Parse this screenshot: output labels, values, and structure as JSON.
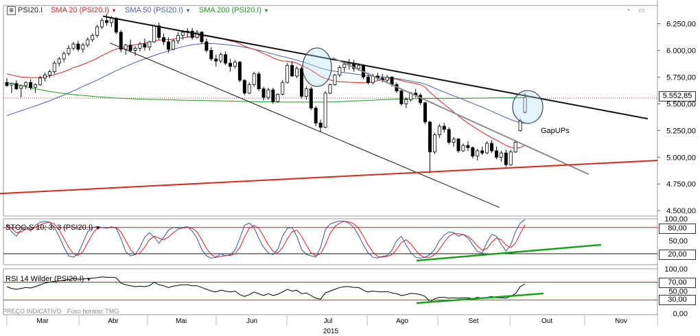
{
  "chart_data": {
    "type": "candlestick",
    "symbol": "PSI20.I",
    "legend": [
      {
        "label": "PSI20.I",
        "color": "#000000"
      },
      {
        "label": "SMA 20 (PSI20.I)",
        "color": "#d62020"
      },
      {
        "label": "SMA 50 (PSI20.I)",
        "color": "#4a5fa8"
      },
      {
        "label": "SMA 200 (PSI20.I)",
        "color": "#1a9a1a"
      }
    ],
    "price_axis": {
      "ticks": [
        "6.250,00",
        "6.000,00",
        "5.750,00",
        "5.500,00",
        "5.250,00",
        "5.000,00",
        "4.750,00",
        "4.500,00"
      ],
      "range": [
        4450,
        6420
      ]
    },
    "last_price": "5.552,85",
    "last_price_value": 5552.85,
    "x_axis": {
      "months": [
        "Mar",
        "Abr",
        "Mai",
        "Jun",
        "Jul",
        "Ago",
        "Set",
        "Out",
        "Nov"
      ],
      "year": "2015"
    },
    "annotations": {
      "gapups_label": "GapUPs"
    },
    "candles": [
      [
        5700,
        5740,
        5660,
        5670
      ],
      [
        5675,
        5700,
        5600,
        5690
      ],
      [
        5690,
        5720,
        5630,
        5640
      ],
      [
        5645,
        5680,
        5560,
        5670
      ],
      [
        5670,
        5710,
        5640,
        5700
      ],
      [
        5700,
        5730,
        5630,
        5650
      ],
      [
        5655,
        5690,
        5600,
        5680
      ],
      [
        5680,
        5760,
        5670,
        5740
      ],
      [
        5740,
        5790,
        5710,
        5770
      ],
      [
        5770,
        5820,
        5740,
        5800
      ],
      [
        5800,
        5900,
        5780,
        5880
      ],
      [
        5880,
        5940,
        5850,
        5920
      ],
      [
        5920,
        5990,
        5890,
        5970
      ],
      [
        5970,
        6050,
        5950,
        6020
      ],
      [
        6020,
        6080,
        6000,
        6060
      ],
      [
        6060,
        6090,
        5990,
        6010
      ],
      [
        6010,
        6070,
        5980,
        6050
      ],
      [
        6050,
        6120,
        6030,
        6100
      ],
      [
        6100,
        6160,
        6080,
        6140
      ],
      [
        6140,
        6240,
        6120,
        6220
      ],
      [
        6220,
        6300,
        6200,
        6280
      ],
      [
        6280,
        6340,
        6230,
        6260
      ],
      [
        6260,
        6320,
        6220,
        6300
      ],
      [
        6300,
        6310,
        6150,
        6170
      ],
      [
        6170,
        6190,
        5980,
        6010
      ],
      [
        6010,
        6060,
        5960,
        6050
      ],
      [
        6050,
        6100,
        5980,
        6000
      ],
      [
        6000,
        6040,
        5950,
        6020
      ],
      [
        6020,
        6080,
        5990,
        6060
      ],
      [
        6060,
        6110,
        6000,
        6030
      ],
      [
        6030,
        6090,
        6000,
        6080
      ],
      [
        6080,
        6240,
        6070,
        6230
      ],
      [
        6230,
        6260,
        6100,
        6120
      ],
      [
        6120,
        6160,
        6050,
        6080
      ],
      [
        6080,
        6120,
        5980,
        6010
      ],
      [
        6010,
        6110,
        6000,
        6090
      ],
      [
        6090,
        6170,
        6060,
        6140
      ],
      [
        6140,
        6190,
        6100,
        6170
      ],
      [
        6170,
        6210,
        6120,
        6180
      ],
      [
        6180,
        6210,
        6100,
        6120
      ],
      [
        6120,
        6190,
        6110,
        6170
      ],
      [
        6170,
        6180,
        6060,
        6080
      ],
      [
        6080,
        6110,
        5980,
        6000
      ],
      [
        6000,
        6030,
        5900,
        5920
      ],
      [
        5920,
        5960,
        5850,
        5900
      ],
      [
        5900,
        5980,
        5880,
        5960
      ],
      [
        5960,
        5990,
        5860,
        5880
      ],
      [
        5880,
        5920,
        5800,
        5850
      ],
      [
        5850,
        5910,
        5830,
        5890
      ],
      [
        5890,
        5900,
        5700,
        5720
      ],
      [
        5720,
        5730,
        5580,
        5600
      ],
      [
        5600,
        5700,
        5590,
        5680
      ],
      [
        5680,
        5800,
        5660,
        5780
      ],
      [
        5780,
        5800,
        5620,
        5640
      ],
      [
        5640,
        5660,
        5530,
        5560
      ],
      [
        5560,
        5650,
        5540,
        5630
      ],
      [
        5630,
        5650,
        5500,
        5520
      ],
      [
        5520,
        5600,
        5510,
        5590
      ],
      [
        5590,
        5720,
        5580,
        5700
      ],
      [
        5700,
        5880,
        5690,
        5860
      ],
      [
        5860,
        5900,
        5750,
        5760
      ],
      [
        5760,
        5850,
        5740,
        5830
      ],
      [
        5830,
        5850,
        5550,
        5570
      ],
      [
        5570,
        5660,
        5540,
        5640
      ],
      [
        5640,
        5660,
        5440,
        5460
      ],
      [
        5460,
        5480,
        5290,
        5320
      ],
      [
        5320,
        5350,
        5240,
        5280
      ],
      [
        5280,
        5620,
        5270,
        5600
      ],
      [
        5600,
        5690,
        5590,
        5680
      ],
      [
        5680,
        5780,
        5670,
        5770
      ],
      [
        5770,
        5860,
        5750,
        5840
      ],
      [
        5840,
        5900,
        5800,
        5870
      ],
      [
        5870,
        5920,
        5820,
        5880
      ],
      [
        5880,
        5910,
        5800,
        5830
      ],
      [
        5830,
        5880,
        5810,
        5860
      ],
      [
        5860,
        5870,
        5730,
        5750
      ],
      [
        5750,
        5790,
        5680,
        5700
      ],
      [
        5700,
        5780,
        5680,
        5760
      ],
      [
        5760,
        5790,
        5720,
        5740
      ],
      [
        5740,
        5780,
        5700,
        5720
      ],
      [
        5720,
        5770,
        5700,
        5750
      ],
      [
        5750,
        5760,
        5660,
        5680
      ],
      [
        5680,
        5700,
        5600,
        5620
      ],
      [
        5620,
        5640,
        5480,
        5500
      ],
      [
        5500,
        5560,
        5460,
        5540
      ],
      [
        5540,
        5610,
        5520,
        5600
      ],
      [
        5600,
        5640,
        5560,
        5580
      ],
      [
        5580,
        5600,
        5490,
        5510
      ],
      [
        5510,
        5520,
        5310,
        5330
      ],
      [
        5330,
        5340,
        4850,
        5050
      ],
      [
        5050,
        5230,
        5030,
        5210
      ],
      [
        5210,
        5310,
        5180,
        5290
      ],
      [
        5290,
        5320,
        5230,
        5260
      ],
      [
        5260,
        5280,
        5120,
        5140
      ],
      [
        5140,
        5190,
        5100,
        5170
      ],
      [
        5170,
        5180,
        5040,
        5060
      ],
      [
        5060,
        5130,
        5050,
        5110
      ],
      [
        5110,
        5150,
        5060,
        5090
      ],
      [
        5090,
        5100,
        4990,
        5010
      ],
      [
        5010,
        5080,
        4970,
        5060
      ],
      [
        5060,
        5100,
        5020,
        5040
      ],
      [
        5040,
        5150,
        5030,
        5130
      ],
      [
        5130,
        5160,
        5040,
        5060
      ],
      [
        5060,
        5100,
        4980,
        5000
      ],
      [
        5000,
        5060,
        4960,
        5040
      ],
      [
        5040,
        5070,
        4910,
        4930
      ],
      [
        4930,
        5070,
        4920,
        5050
      ],
      [
        5050,
        5160,
        5040,
        5140
      ],
      [
        5250,
        5360,
        5240,
        5340
      ],
      [
        5420,
        5600,
        5410,
        5560
      ]
    ],
    "sma20": [
      5780,
      5770,
      5760,
      5750,
      5750,
      5745,
      5745,
      5748,
      5752,
      5760,
      5772,
      5786,
      5800,
      5818,
      5838,
      5852,
      5868,
      5886,
      5904,
      5926,
      5950,
      5972,
      5994,
      6012,
      6024,
      6035,
      6044,
      6052,
      6060,
      6068,
      6075,
      6088,
      6096,
      6100,
      6102,
      6105,
      6110,
      6118,
      6124,
      6130,
      6136,
      6137,
      6134,
      6126,
      6116,
      6110,
      6100,
      6088,
      6080,
      6062,
      6040,
      6022,
      6010,
      5992,
      5970,
      5952,
      5930,
      5912,
      5900,
      5898,
      5890,
      5880,
      5860,
      5840,
      5815,
      5786,
      5756,
      5738,
      5724,
      5712,
      5706,
      5704,
      5702,
      5700,
      5698,
      5696,
      5696,
      5706,
      5716,
      5726,
      5734,
      5736,
      5730,
      5718,
      5706,
      5698,
      5690,
      5678,
      5656,
      5610,
      5570,
      5532,
      5496,
      5460,
      5424,
      5386,
      5350,
      5320,
      5290,
      5262,
      5234,
      5208,
      5182,
      5160,
      5136,
      5110,
      5092,
      5084,
      5090,
      5112
    ],
    "sma50": [
      5390,
      5405,
      5420,
      5435,
      5450,
      5465,
      5480,
      5496,
      5512,
      5528,
      5546,
      5564,
      5582,
      5602,
      5622,
      5642,
      5662,
      5682,
      5702,
      5722,
      5744,
      5766,
      5788,
      5810,
      5830,
      5850,
      5868,
      5886,
      5904,
      5920,
      5936,
      5952,
      5968,
      5982,
      5996,
      6010,
      6022,
      6034,
      6044,
      6052,
      6058,
      6062,
      6064,
      6064,
      6062,
      6058,
      6054,
      6050,
      6044,
      6038,
      6030,
      6020,
      6010,
      6000,
      5990,
      5978,
      5966,
      5954,
      5942,
      5932,
      5920,
      5908,
      5896,
      5882,
      5866,
      5850,
      5834,
      5822,
      5812,
      5804,
      5798,
      5792,
      5786,
      5780,
      5774,
      5768,
      5762,
      5758,
      5754,
      5750,
      5746,
      5742,
      5736,
      5728,
      5720,
      5712,
      5704,
      5696,
      5684,
      5666,
      5646,
      5628,
      5610,
      5592,
      5574,
      5558,
      5540,
      5522,
      5504,
      5486,
      5468,
      5450,
      5430,
      5410,
      5390,
      5370,
      5352,
      5336,
      5324,
      5318
    ],
    "sma200": [
      5700,
      5690,
      5680,
      5670,
      5660,
      5650,
      5640,
      5632,
      5624,
      5616,
      5608,
      5602,
      5596,
      5590,
      5586,
      5582,
      5578,
      5574,
      5570,
      5566,
      5563,
      5560,
      5557,
      5554,
      5552,
      5550,
      5548,
      5546,
      5544,
      5542,
      5541,
      5540,
      5539,
      5538,
      5537,
      5536,
      5535,
      5534,
      5533,
      5532,
      5532,
      5531,
      5530,
      5529,
      5528,
      5527,
      5526,
      5525,
      5524,
      5523,
      5522,
      5521,
      5520,
      5519,
      5518,
      5518,
      5517,
      5517,
      5516,
      5516,
      5516,
      5516,
      5516,
      5516,
      5516,
      5516,
      5516,
      5516,
      5517,
      5518,
      5520,
      5522,
      5524,
      5526,
      5528,
      5530,
      5532,
      5534,
      5536,
      5538,
      5540,
      5542,
      5544,
      5545,
      5546,
      5547,
      5548,
      5549,
      5550,
      5550,
      5550,
      5550,
      5550,
      5550,
      5551,
      5551,
      5552,
      5552,
      5553,
      5553,
      5554,
      5554,
      5555,
      5555,
      5556,
      5556,
      5557,
      5557,
      5558,
      5558
    ],
    "stochastic": {
      "label": "STOC-S 10; 3; 3 (PSI20.I)",
      "axis_ticks": [
        "100,00",
        "50,00"
      ],
      "levels": [
        "80,00",
        "20,00"
      ],
      "level_values": [
        80,
        20
      ],
      "range": [
        -5,
        100
      ],
      "k": [
        85,
        70,
        60,
        75,
        82,
        72,
        85,
        92,
        94,
        92,
        80,
        60,
        35,
        15,
        12,
        20,
        45,
        70,
        80,
        82,
        80,
        78,
        82,
        78,
        55,
        25,
        15,
        18,
        35,
        58,
        68,
        58,
        44,
        58,
        74,
        80,
        79,
        80,
        82,
        72,
        55,
        30,
        15,
        10,
        12,
        20,
        15,
        18,
        28,
        55,
        85,
        90,
        80,
        55,
        35,
        22,
        18,
        30,
        60,
        78,
        80,
        60,
        30,
        18,
        15,
        12,
        35,
        75,
        88,
        92,
        95,
        94,
        90,
        80,
        62,
        40,
        22,
        12,
        10,
        14,
        16,
        28,
        50,
        60,
        40,
        22,
        12,
        10,
        12,
        18,
        30,
        50,
        62,
        70,
        68,
        60,
        64,
        56,
        40,
        25,
        22,
        46,
        64,
        60,
        42,
        26,
        40,
        70,
        90,
        98
      ],
      "d": [
        88,
        78,
        68,
        70,
        76,
        76,
        80,
        86,
        90,
        92,
        88,
        75,
        55,
        35,
        20,
        16,
        25,
        45,
        65,
        78,
        80,
        79,
        80,
        80,
        70,
        50,
        30,
        18,
        22,
        35,
        52,
        60,
        56,
        52,
        58,
        68,
        76,
        79,
        80,
        78,
        70,
        52,
        32,
        18,
        12,
        14,
        16,
        16,
        20,
        34,
        58,
        78,
        85,
        78,
        60,
        40,
        26,
        22,
        34,
        54,
        70,
        74,
        60,
        40,
        22,
        15,
        20,
        40,
        66,
        82,
        90,
        94,
        93,
        88,
        78,
        60,
        40,
        24,
        14,
        12,
        14,
        18,
        30,
        46,
        52,
        42,
        28,
        16,
        12,
        12,
        18,
        30,
        46,
        60,
        66,
        66,
        64,
        60,
        50,
        38,
        28,
        32,
        46,
        56,
        52,
        40,
        34,
        44,
        66,
        86
      ]
    },
    "rsi": {
      "label": "RSI 14 Wilder (PSI20.I)",
      "axis_ticks": [
        "100,00",
        "50,00",
        "0,00"
      ],
      "levels": [
        "70,00",
        "30,00"
      ],
      "level_values": [
        70,
        30
      ],
      "range": [
        -3,
        100
      ],
      "values": [
        60,
        56,
        54,
        56,
        58,
        57,
        60,
        64,
        68,
        70,
        72,
        73,
        74,
        76,
        78,
        77,
        77,
        78,
        79,
        80,
        82,
        81,
        81,
        80,
        68,
        64,
        62,
        60,
        61,
        60,
        62,
        70,
        64,
        62,
        58,
        61,
        63,
        64,
        64,
        62,
        62,
        58,
        54,
        50,
        48,
        52,
        50,
        48,
        50,
        42,
        38,
        42,
        48,
        44,
        40,
        44,
        40,
        43,
        48,
        54,
        50,
        52,
        44,
        46,
        40,
        34,
        32,
        46,
        50,
        54,
        58,
        60,
        60,
        58,
        58,
        52,
        48,
        50,
        49,
        48,
        49,
        46,
        44,
        40,
        42,
        45,
        44,
        42,
        38,
        26,
        33,
        36,
        36,
        34,
        35,
        34,
        35,
        35,
        33,
        36,
        34,
        36,
        38,
        35,
        35,
        34,
        39,
        44,
        60,
        66
      ]
    },
    "footer": {
      "indicative": "PREÇO INDICATIVO",
      "timezone": "Fuso horário: TMG"
    }
  }
}
